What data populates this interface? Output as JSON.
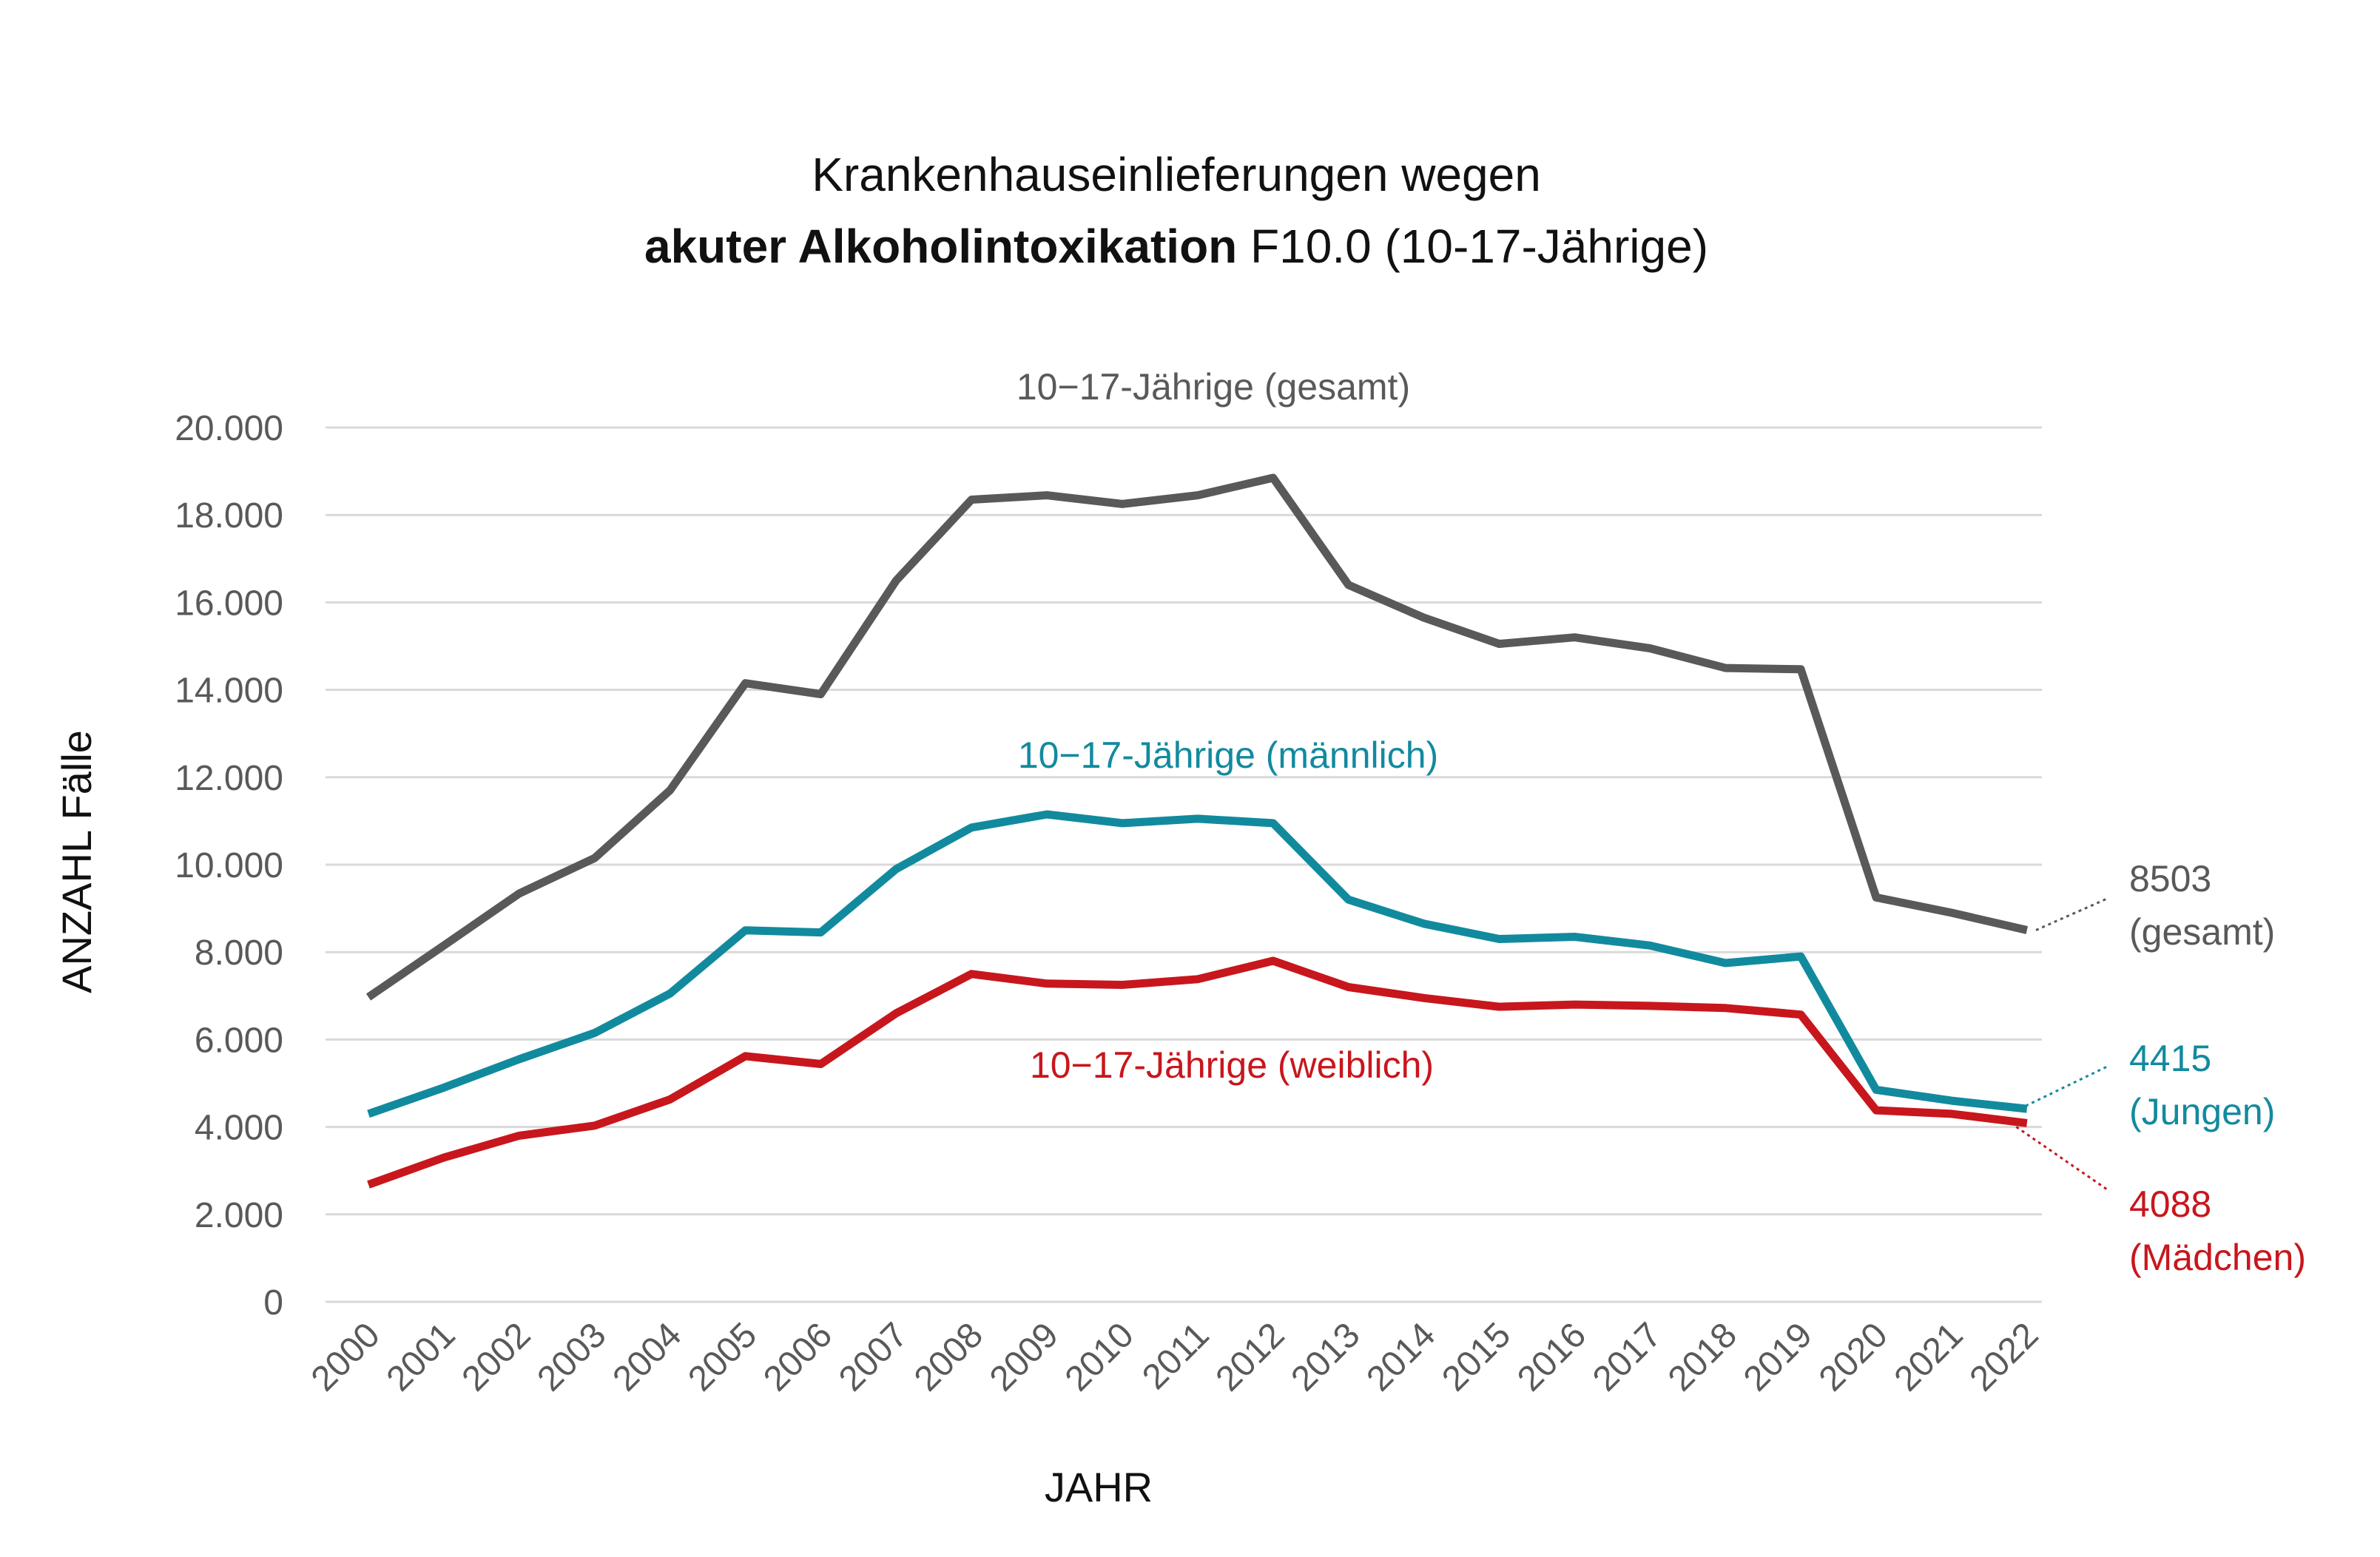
{
  "chart_data": {
    "type": "line",
    "title": {
      "line1": "Krankenhauseinlieferungen wegen",
      "line2_bold": "akuter Alkoholintoxikation",
      "line2_rest": " F10.0 (10-17-Jährige)"
    },
    "xlabel": "JAHR",
    "ylabel": "ANZAHL Fälle",
    "ylim": [
      0,
      20000
    ],
    "yticks": [
      0,
      2000,
      4000,
      6000,
      8000,
      10000,
      12000,
      14000,
      16000,
      18000,
      20000
    ],
    "ytick_labels": [
      "0",
      "2.000",
      "4.000",
      "6.000",
      "8.000",
      "10.000",
      "12.000",
      "14.000",
      "16.000",
      "18.000",
      "20.000"
    ],
    "grid": true,
    "legend": "none",
    "x": [
      "2000",
      "2001",
      "2002",
      "2003",
      "2004",
      "2005",
      "2006",
      "2007",
      "2008",
      "2009",
      "2010",
      "2011",
      "2012",
      "2013",
      "2014",
      "2015",
      "2016",
      "2017",
      "2018",
      "2019",
      "2020",
      "2021",
      "2022"
    ],
    "series": [
      {
        "name": "10−17-Jährige (gesamt)",
        "color": "#595959",
        "values": [
          6970,
          8150,
          9340,
          10150,
          11700,
          14150,
          13900,
          16500,
          18350,
          18450,
          18250,
          18450,
          18850,
          16400,
          15650,
          15050,
          15200,
          14950,
          14500,
          14470,
          9250,
          8900,
          8503
        ],
        "end_value": "8503",
        "end_caption": "(gesamt)"
      },
      {
        "name": "10−17-Jährige (männlich)",
        "color": "#128A9E",
        "values": [
          4300,
          4900,
          5550,
          6150,
          7050,
          8500,
          8450,
          9900,
          10850,
          11150,
          10950,
          11050,
          10950,
          9200,
          8650,
          8300,
          8350,
          8150,
          7750,
          7900,
          4850,
          4600,
          4415
        ],
        "end_value": "4415",
        "end_caption": "(Jungen)"
      },
      {
        "name": "10−17-Jährige (weiblich)",
        "color": "#C8161D",
        "values": [
          2680,
          3300,
          3800,
          4030,
          4630,
          5620,
          5440,
          6600,
          7500,
          7280,
          7250,
          7380,
          7800,
          7200,
          6950,
          6750,
          6800,
          6770,
          6720,
          6570,
          4380,
          4300,
          4088
        ],
        "end_value": "4088",
        "end_caption": "(Mädchen)"
      }
    ]
  }
}
